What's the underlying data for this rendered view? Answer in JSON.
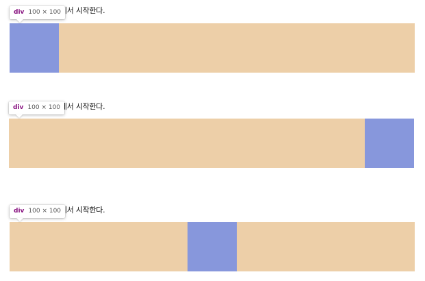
{
  "colors": {
    "container": "#edcfa8",
    "box": "#8797dc",
    "tag": "#881280"
  },
  "demos": [
    {
      "caption": "]에서 시작한다.",
      "tooltip": {
        "tag": "div",
        "dims": "100 × 100"
      }
    },
    {
      "caption": "]에서 시작한다.",
      "tooltip": {
        "tag": "div",
        "dims": "100 × 100"
      }
    },
    {
      "caption": "]에서 시작한다.",
      "tooltip": {
        "tag": "div",
        "dims": "100 × 100"
      }
    }
  ]
}
